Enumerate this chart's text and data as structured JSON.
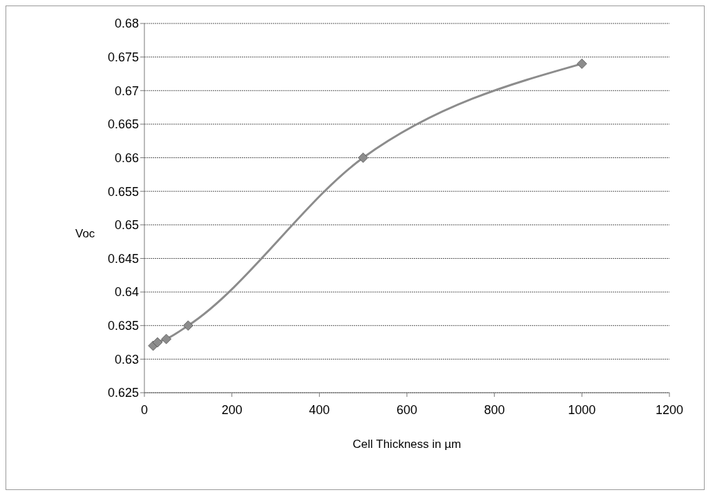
{
  "chart_data": {
    "type": "line",
    "xlabel": "Cell Thickness in µm",
    "ylabel": "Voc",
    "x": [
      20,
      30,
      50,
      100,
      500,
      1000
    ],
    "series": [
      {
        "color": "#8c8c8c",
        "values": [
          0.632,
          0.6325,
          0.633,
          0.635,
          0.66,
          0.674
        ]
      }
    ],
    "xlim": [
      0,
      1200
    ],
    "xticks": [
      0,
      200,
      400,
      600,
      800,
      1000,
      1200
    ],
    "ylim": [
      0.625,
      0.68
    ],
    "yticks": [
      0.625,
      0.63,
      0.635,
      0.64,
      0.645,
      0.65,
      0.655,
      0.66,
      0.665,
      0.67,
      0.675,
      0.68
    ],
    "grid": "y",
    "marker": "diamond",
    "line_style": "solid",
    "legend": false
  }
}
